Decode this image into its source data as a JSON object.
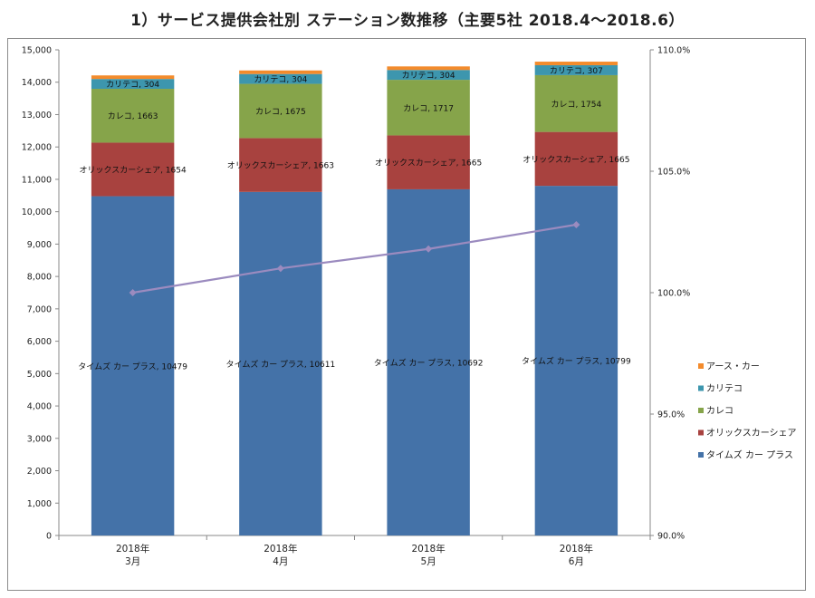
{
  "title": "1）サービス提供会社別 ステーション数推移（主要5社 2018.4～2018.6）",
  "chart_data": {
    "type": "bar",
    "stacked": true,
    "categories": [
      [
        "2018年",
        "3月"
      ],
      [
        "2018年",
        "4月"
      ],
      [
        "2018年",
        "5月"
      ],
      [
        "2018年",
        "6月"
      ]
    ],
    "series": [
      {
        "name": "タイムズ カー プラス",
        "color": "#4472a8",
        "values": [
          10479,
          10611,
          10692,
          10799
        ],
        "labels": true
      },
      {
        "name": "オリックスカーシェア",
        "color": "#a8423f",
        "values": [
          1654,
          1663,
          1665,
          1665
        ],
        "labels": true
      },
      {
        "name": "カレコ",
        "color": "#86a44a",
        "values": [
          1663,
          1675,
          1717,
          1754
        ],
        "labels": true
      },
      {
        "name": "カリテコ",
        "color": "#3d96ae",
        "values": [
          304,
          304,
          304,
          307
        ],
        "labels": true
      },
      {
        "name": "アース・カー",
        "color": "#f38b2c",
        "values": [
          110,
          110,
          110,
          110
        ],
        "labels": false
      }
    ],
    "ratio_series": {
      "color": "#9b8bbf",
      "values": [
        100.0,
        101.0,
        101.8,
        102.8
      ]
    },
    "ylim": [
      0,
      15000
    ],
    "yticks": [
      "0",
      "1,000",
      "2,000",
      "3,000",
      "4,000",
      "5,000",
      "6,000",
      "7,000",
      "8,000",
      "9,000",
      "10,000",
      "11,000",
      "12,000",
      "13,000",
      "14,000",
      "15,000"
    ],
    "y2lim": [
      90,
      110
    ],
    "y2ticks": [
      "90.0%",
      "95.0%",
      "100.0%",
      "105.0%",
      "110.0%"
    ],
    "legend_position": "right"
  }
}
